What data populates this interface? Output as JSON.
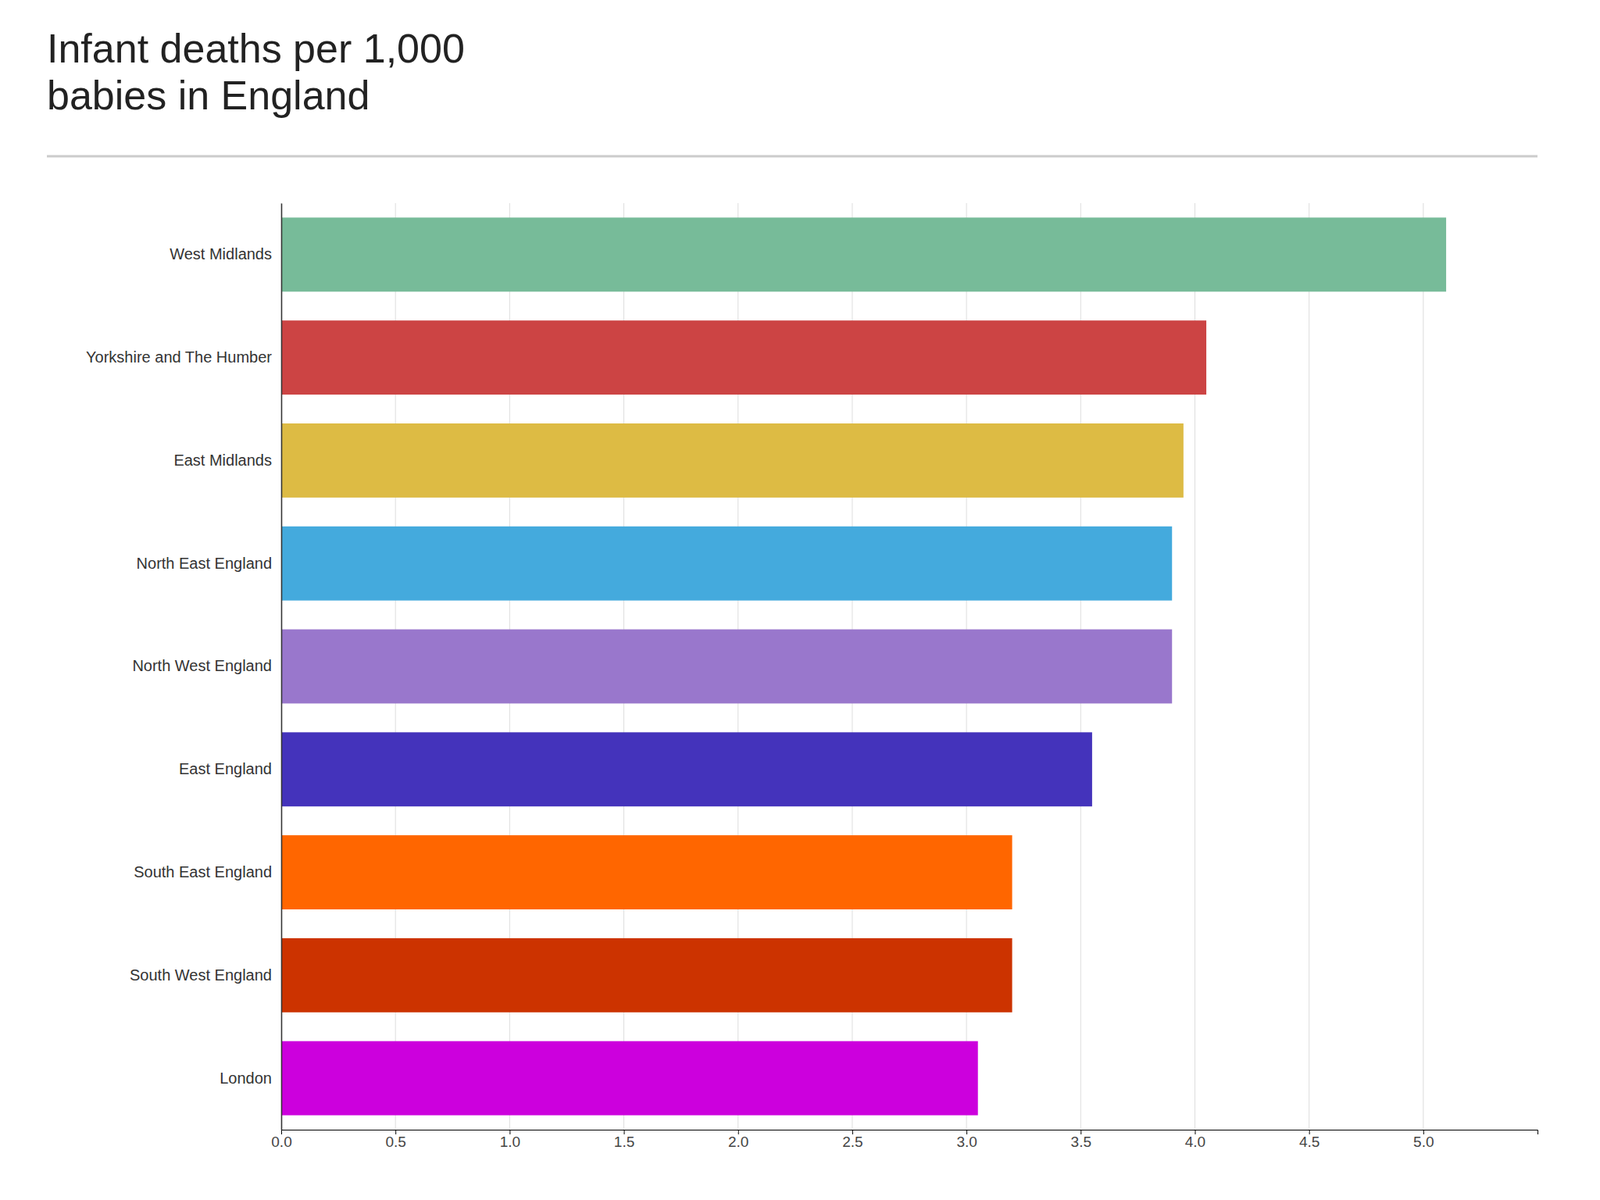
{
  "chart_data": {
    "type": "bar",
    "orientation": "horizontal",
    "title": "Infant deaths per 1,000\nbabies in England",
    "categories": [
      "London",
      "South West England",
      "South East England",
      "East England",
      "North West England",
      "North East England",
      "East Midlands",
      "Yorkshire and The Humber",
      "West Midlands"
    ],
    "values": [
      3.05,
      3.2,
      3.2,
      3.55,
      3.9,
      3.9,
      3.95,
      4.05,
      5.1
    ],
    "colors": [
      "#CC00DD",
      "#CC3300",
      "#FF6600",
      "#4433BB",
      "#9977CC",
      "#44AADD",
      "#DDBB44",
      "#CC4444",
      "#77BB99"
    ],
    "xlim": [
      0.0,
      5.5
    ],
    "xticks": [
      {
        "value": 0,
        "label": "0.0"
      },
      0.5,
      {
        "value": 1,
        "label": "1.0"
      },
      1.5,
      {
        "value": 2,
        "label": "2.0"
      },
      2.5,
      {
        "value": 3,
        "label": "3.0"
      },
      3.5,
      {
        "value": 4,
        "label": "4.0"
      },
      4.5,
      {
        "value": 5,
        "label": "5.0"
      }
    ],
    "grid": true
  }
}
